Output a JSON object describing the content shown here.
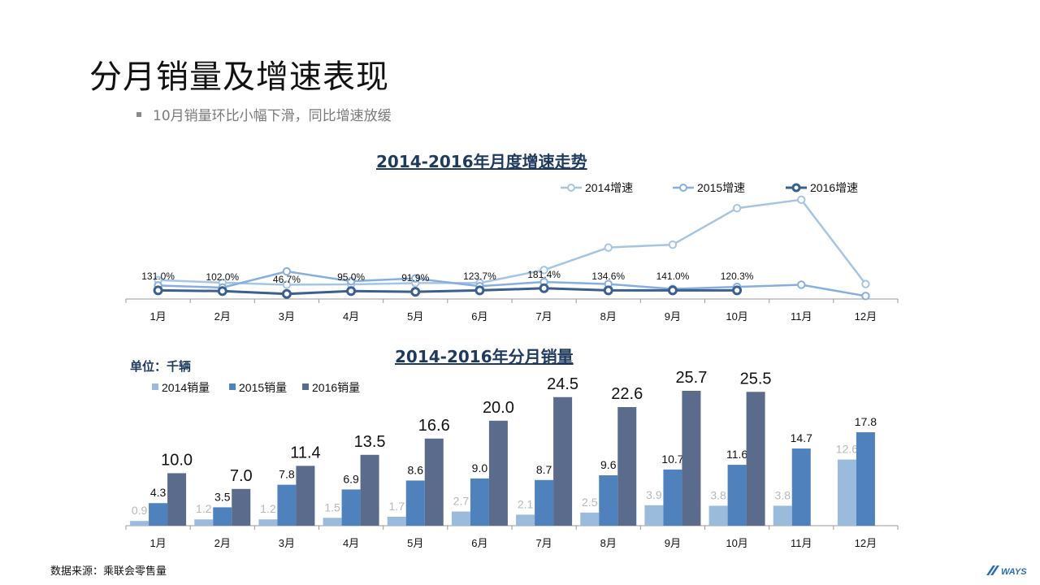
{
  "page": {
    "title": "分月销量及增速表现",
    "bullet": "10月销量环比小幅下滑，同比增速放缓",
    "source": "数据来源：乘联会零售量",
    "logo_text": "WAYS"
  },
  "colors": {
    "s2014": "#9bbbdd",
    "s2015": "#4f81bd",
    "s2016": "#5a6b8c",
    "l2014": "#a6c4e3",
    "l2015": "#86aee0",
    "l2016": "#3b5f8e",
    "title": "#1f3a5f"
  },
  "chart_data": [
    {
      "type": "line",
      "title": "2014-2016年月度增速走势",
      "categories": [
        "1月",
        "2月",
        "3月",
        "4月",
        "5月",
        "6月",
        "7月",
        "8月",
        "9月",
        "10月",
        "11月",
        "12月"
      ],
      "series": [
        {
          "name": "2014增速",
          "values": [
            88,
            70,
            55,
            58,
            67,
            68,
            160,
            320,
            340,
            600,
            660,
            60
          ]
        },
        {
          "name": "2015增速",
          "values": [
            50,
            35,
            150,
            80,
            100,
            45,
            75,
            60,
            25,
            40,
            55,
            -25
          ]
        },
        {
          "name": "2016增速",
          "values": [
            15,
            10,
            -10,
            10,
            5,
            15,
            30,
            15,
            15,
            15,
            null,
            null
          ]
        }
      ],
      "data_labels": [
        "131.0%",
        "102.0%",
        "46.7%",
        "95.0%",
        "91.9%",
        "123.7%",
        "181.4%",
        "134.6%",
        "141.0%",
        "120.3%"
      ],
      "legend": "top-right",
      "grid": false
    },
    {
      "type": "bar",
      "title": "2014-2016年分月销量",
      "unit_label": "单位：千辆",
      "categories": [
        "1月",
        "2月",
        "3月",
        "4月",
        "5月",
        "6月",
        "7月",
        "8月",
        "9月",
        "10月",
        "11月",
        "12月"
      ],
      "series": [
        {
          "name": "2014销量",
          "values": [
            0.9,
            1.2,
            1.2,
            1.5,
            1.7,
            2.7,
            2.1,
            2.5,
            3.9,
            3.8,
            3.8,
            12.6
          ]
        },
        {
          "name": "2015销量",
          "values": [
            4.3,
            3.5,
            7.8,
            6.9,
            8.6,
            9.0,
            8.7,
            9.6,
            10.7,
            11.6,
            14.7,
            17.8
          ]
        },
        {
          "name": "2016销量",
          "values": [
            10.0,
            7.0,
            11.4,
            13.5,
            16.6,
            20.0,
            24.5,
            22.6,
            25.7,
            25.5,
            null,
            null
          ]
        }
      ],
      "legend": "top-left",
      "grid": false
    }
  ]
}
